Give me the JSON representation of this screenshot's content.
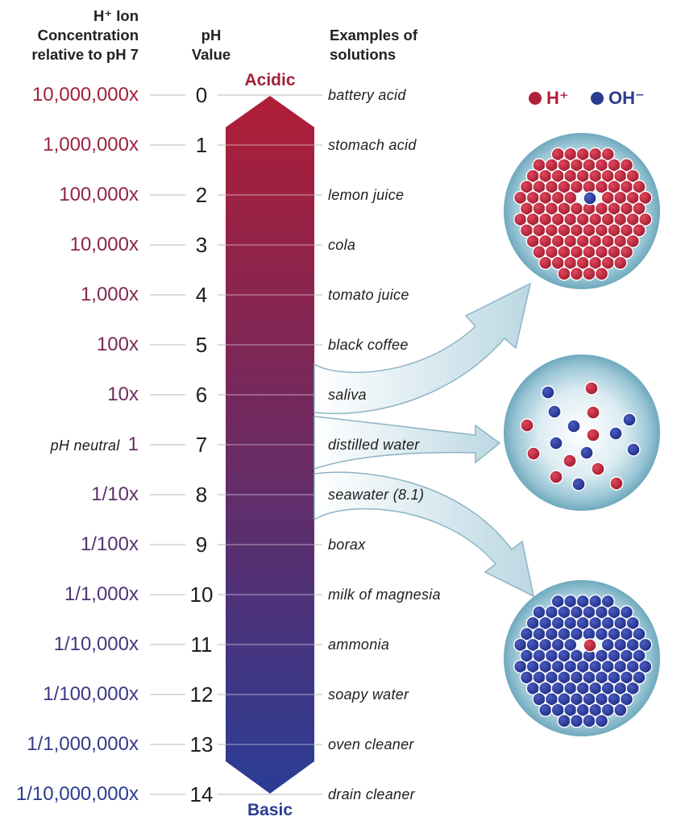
{
  "headers": {
    "concentration": [
      "H⁺ Ion",
      "Concentration",
      "relative to pH 7"
    ],
    "ph_value": [
      "pH",
      "Value"
    ],
    "examples": [
      "Examples of",
      "solutions"
    ]
  },
  "scale_end_labels": {
    "acidic": "Acidic",
    "basic": "Basic"
  },
  "neutral_note": "pH neutral",
  "rows": [
    {
      "concentration": "10,000,000x",
      "ph": "0",
      "example": "battery acid"
    },
    {
      "concentration": "1,000,000x",
      "ph": "1",
      "example": "stomach acid"
    },
    {
      "concentration": "100,000x",
      "ph": "2",
      "example": "lemon juice"
    },
    {
      "concentration": "10,000x",
      "ph": "3",
      "example": "cola"
    },
    {
      "concentration": "1,000x",
      "ph": "4",
      "example": "tomato juice"
    },
    {
      "concentration": "100x",
      "ph": "5",
      "example": "black coffee"
    },
    {
      "concentration": "10x",
      "ph": "6",
      "example": "saliva"
    },
    {
      "concentration": "1",
      "ph": "7",
      "example": "distilled water"
    },
    {
      "concentration": "1/10x",
      "ph": "8",
      "example": "seawater (8.1)"
    },
    {
      "concentration": "1/100x",
      "ph": "9",
      "example": "borax"
    },
    {
      "concentration": "1/1,000x",
      "ph": "10",
      "example": "milk of magnesia"
    },
    {
      "concentration": "1/10,000x",
      "ph": "11",
      "example": "ammonia"
    },
    {
      "concentration": "1/100,000x",
      "ph": "12",
      "example": "soapy water"
    },
    {
      "concentration": "1/1,000,000x",
      "ph": "13",
      "example": "oven cleaner"
    },
    {
      "concentration": "1/10,000,000x",
      "ph": "14",
      "example": "drain cleaner"
    }
  ],
  "legend": {
    "h_ion": "H⁺",
    "oh_ion": "OH⁻"
  },
  "colors": {
    "acidic": "#a3203a",
    "basic": "#2a3c8f",
    "h_ion": "#b0203a",
    "oh_ion": "#2b3b8e",
    "neutral_text": "#1e1e1e"
  },
  "ion_samples": [
    {
      "name": "acidic-sample",
      "h_ions": "many",
      "oh_ions": "one"
    },
    {
      "name": "neutral-sample",
      "h_ions": "equal",
      "oh_ions": "equal"
    },
    {
      "name": "basic-sample",
      "h_ions": "one",
      "oh_ions": "many"
    }
  ]
}
